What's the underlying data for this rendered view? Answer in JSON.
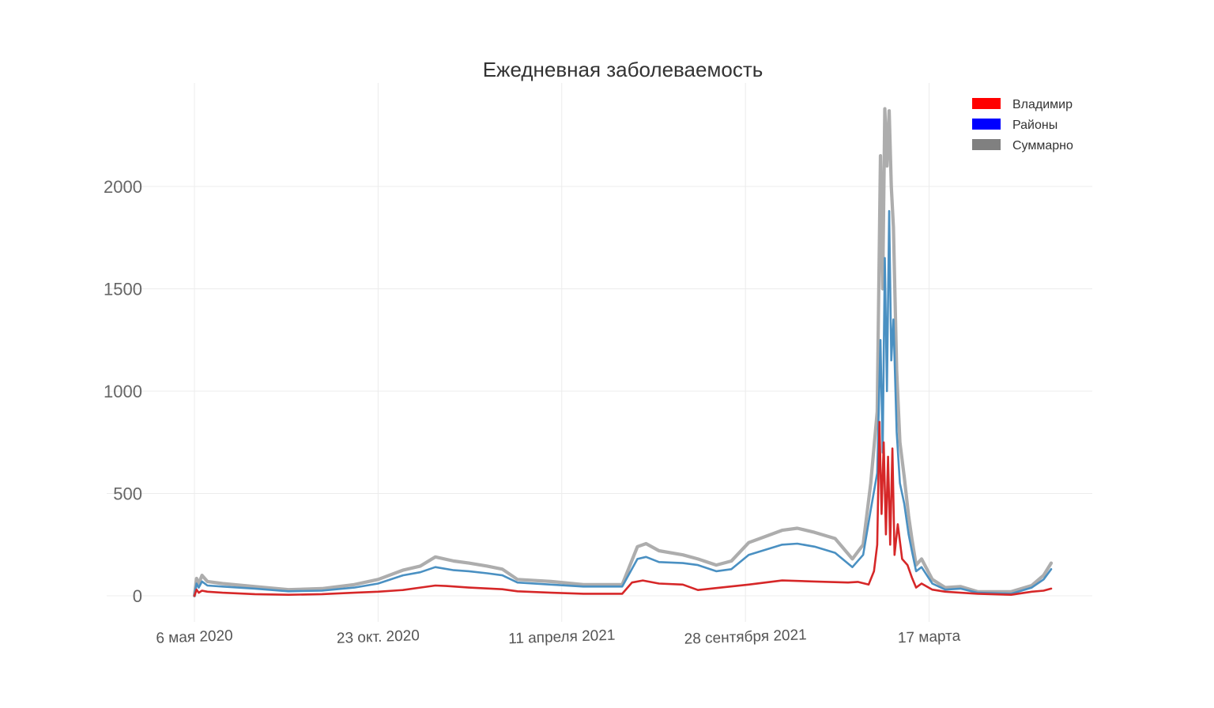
{
  "chart_data": {
    "type": "line",
    "title": "Ежедневная заболеваемость",
    "xlabel": "",
    "ylabel": "",
    "x_range": [
      "2020-05-06",
      "2022-07-08"
    ],
    "ylim": [
      -95,
      2490
    ],
    "y_ticks": [
      0,
      500,
      1000,
      1500,
      2000
    ],
    "x_ticks": [
      {
        "date": "2020-05-06",
        "label": "6 мая 2020"
      },
      {
        "date": "2020-10-23",
        "label": "23 окт. 2020"
      },
      {
        "date": "2021-04-11",
        "label": "11 апреля 2021"
      },
      {
        "date": "2021-09-28",
        "label": "28 сентября 2021"
      },
      {
        "date": "2022-03-17",
        "label": "17 марта"
      }
    ],
    "grid": true,
    "legend_position": "top-right",
    "series": [
      {
        "name": "Владимир",
        "color": "#d62728",
        "legend_color": "#ff0000",
        "points": [
          [
            "2020-05-06",
            0
          ],
          [
            "2020-05-08",
            30
          ],
          [
            "2020-05-10",
            15
          ],
          [
            "2020-05-13",
            25
          ],
          [
            "2020-05-18",
            20
          ],
          [
            "2020-06-01",
            15
          ],
          [
            "2020-07-01",
            8
          ],
          [
            "2020-08-01",
            5
          ],
          [
            "2020-09-01",
            8
          ],
          [
            "2020-10-01",
            15
          ],
          [
            "2020-10-23",
            20
          ],
          [
            "2020-11-15",
            28
          ],
          [
            "2020-12-01",
            40
          ],
          [
            "2020-12-15",
            50
          ],
          [
            "2020-12-25",
            48
          ],
          [
            "2021-01-15",
            40
          ],
          [
            "2021-02-15",
            32
          ],
          [
            "2021-03-01",
            22
          ],
          [
            "2021-04-01",
            15
          ],
          [
            "2021-05-01",
            10
          ],
          [
            "2021-06-06",
            10
          ],
          [
            "2021-06-15",
            65
          ],
          [
            "2021-06-25",
            75
          ],
          [
            "2021-07-10",
            60
          ],
          [
            "2021-08-01",
            55
          ],
          [
            "2021-08-15",
            28
          ],
          [
            "2021-09-01",
            38
          ],
          [
            "2021-10-01",
            55
          ],
          [
            "2021-11-01",
            75
          ],
          [
            "2021-12-01",
            70
          ],
          [
            "2022-01-01",
            65
          ],
          [
            "2022-01-10",
            68
          ],
          [
            "2022-01-20",
            55
          ],
          [
            "2022-01-25",
            120
          ],
          [
            "2022-01-28",
            250
          ],
          [
            "2022-01-30",
            850
          ],
          [
            "2022-02-01",
            400
          ],
          [
            "2022-02-03",
            750
          ],
          [
            "2022-02-05",
            300
          ],
          [
            "2022-02-07",
            680
          ],
          [
            "2022-02-09",
            250
          ],
          [
            "2022-02-11",
            720
          ],
          [
            "2022-02-13",
            200
          ],
          [
            "2022-02-16",
            350
          ],
          [
            "2022-02-20",
            180
          ],
          [
            "2022-02-25",
            150
          ],
          [
            "2022-03-01",
            90
          ],
          [
            "2022-03-05",
            40
          ],
          [
            "2022-03-10",
            60
          ],
          [
            "2022-03-20",
            30
          ],
          [
            "2022-04-01",
            20
          ],
          [
            "2022-04-15",
            15
          ],
          [
            "2022-05-01",
            10
          ],
          [
            "2022-06-01",
            5
          ],
          [
            "2022-06-20",
            20
          ],
          [
            "2022-07-01",
            25
          ],
          [
            "2022-07-08",
            35
          ]
        ]
      },
      {
        "name": "Районы",
        "color": "#4a90c2",
        "legend_color": "#0000ff",
        "points": [
          [
            "2020-05-06",
            0
          ],
          [
            "2020-05-08",
            60
          ],
          [
            "2020-05-10",
            40
          ],
          [
            "2020-05-13",
            70
          ],
          [
            "2020-05-18",
            50
          ],
          [
            "2020-06-01",
            45
          ],
          [
            "2020-07-01",
            35
          ],
          [
            "2020-08-01",
            22
          ],
          [
            "2020-09-01",
            25
          ],
          [
            "2020-10-01",
            40
          ],
          [
            "2020-10-23",
            60
          ],
          [
            "2020-11-15",
            100
          ],
          [
            "2020-12-01",
            115
          ],
          [
            "2020-12-15",
            140
          ],
          [
            "2021-01-01",
            125
          ],
          [
            "2021-01-15",
            120
          ],
          [
            "2021-02-01",
            110
          ],
          [
            "2021-02-15",
            100
          ],
          [
            "2021-03-01",
            65
          ],
          [
            "2021-04-01",
            55
          ],
          [
            "2021-05-01",
            45
          ],
          [
            "2021-06-06",
            45
          ],
          [
            "2021-06-20",
            180
          ],
          [
            "2021-06-28",
            190
          ],
          [
            "2021-07-10",
            165
          ],
          [
            "2021-08-01",
            160
          ],
          [
            "2021-08-15",
            150
          ],
          [
            "2021-09-01",
            120
          ],
          [
            "2021-09-15",
            130
          ],
          [
            "2021-10-01",
            200
          ],
          [
            "2021-11-01",
            250
          ],
          [
            "2021-11-15",
            255
          ],
          [
            "2021-12-01",
            240
          ],
          [
            "2021-12-20",
            210
          ],
          [
            "2022-01-05",
            140
          ],
          [
            "2022-01-15",
            200
          ],
          [
            "2022-01-22",
            420
          ],
          [
            "2022-01-28",
            600
          ],
          [
            "2022-01-31",
            1250
          ],
          [
            "2022-02-02",
            700
          ],
          [
            "2022-02-04",
            1650
          ],
          [
            "2022-02-06",
            1000
          ],
          [
            "2022-02-08",
            1880
          ],
          [
            "2022-02-10",
            1150
          ],
          [
            "2022-02-12",
            1350
          ],
          [
            "2022-02-15",
            800
          ],
          [
            "2022-02-18",
            550
          ],
          [
            "2022-02-22",
            450
          ],
          [
            "2022-02-26",
            300
          ],
          [
            "2022-03-01",
            220
          ],
          [
            "2022-03-05",
            120
          ],
          [
            "2022-03-10",
            140
          ],
          [
            "2022-03-20",
            60
          ],
          [
            "2022-04-01",
            30
          ],
          [
            "2022-04-15",
            35
          ],
          [
            "2022-05-01",
            15
          ],
          [
            "2022-06-01",
            10
          ],
          [
            "2022-06-20",
            40
          ],
          [
            "2022-07-01",
            80
          ],
          [
            "2022-07-08",
            130
          ]
        ]
      },
      {
        "name": "Суммарно",
        "color": "#adadad",
        "legend_color": "#808080",
        "points": [
          [
            "2020-05-06",
            0
          ],
          [
            "2020-05-08",
            85
          ],
          [
            "2020-05-10",
            60
          ],
          [
            "2020-05-13",
            100
          ],
          [
            "2020-05-18",
            70
          ],
          [
            "2020-06-01",
            60
          ],
          [
            "2020-07-01",
            45
          ],
          [
            "2020-08-01",
            30
          ],
          [
            "2020-09-01",
            35
          ],
          [
            "2020-10-01",
            55
          ],
          [
            "2020-10-23",
            80
          ],
          [
            "2020-11-15",
            125
          ],
          [
            "2020-12-01",
            145
          ],
          [
            "2020-12-15",
            190
          ],
          [
            "2021-01-01",
            170
          ],
          [
            "2021-01-15",
            160
          ],
          [
            "2021-02-01",
            145
          ],
          [
            "2021-02-15",
            130
          ],
          [
            "2021-03-01",
            80
          ],
          [
            "2021-04-01",
            70
          ],
          [
            "2021-05-01",
            55
          ],
          [
            "2021-06-06",
            55
          ],
          [
            "2021-06-20",
            240
          ],
          [
            "2021-06-28",
            255
          ],
          [
            "2021-07-10",
            220
          ],
          [
            "2021-08-01",
            200
          ],
          [
            "2021-08-15",
            180
          ],
          [
            "2021-09-01",
            150
          ],
          [
            "2021-09-15",
            170
          ],
          [
            "2021-10-01",
            260
          ],
          [
            "2021-11-01",
            320
          ],
          [
            "2021-11-15",
            330
          ],
          [
            "2021-12-01",
            310
          ],
          [
            "2021-12-20",
            280
          ],
          [
            "2022-01-05",
            180
          ],
          [
            "2022-01-15",
            250
          ],
          [
            "2022-01-22",
            550
          ],
          [
            "2022-01-28",
            900
          ],
          [
            "2022-01-31",
            2150
          ],
          [
            "2022-02-02",
            1500
          ],
          [
            "2022-02-04",
            2380
          ],
          [
            "2022-02-06",
            2100
          ],
          [
            "2022-02-08",
            2370
          ],
          [
            "2022-02-10",
            2000
          ],
          [
            "2022-02-12",
            1800
          ],
          [
            "2022-02-15",
            1100
          ],
          [
            "2022-02-18",
            750
          ],
          [
            "2022-02-22",
            580
          ],
          [
            "2022-02-26",
            390
          ],
          [
            "2022-03-01",
            280
          ],
          [
            "2022-03-05",
            150
          ],
          [
            "2022-03-10",
            180
          ],
          [
            "2022-03-20",
            80
          ],
          [
            "2022-04-01",
            40
          ],
          [
            "2022-04-15",
            45
          ],
          [
            "2022-05-01",
            20
          ],
          [
            "2022-06-01",
            20
          ],
          [
            "2022-06-20",
            50
          ],
          [
            "2022-07-01",
            100
          ],
          [
            "2022-07-08",
            160
          ]
        ]
      }
    ]
  }
}
